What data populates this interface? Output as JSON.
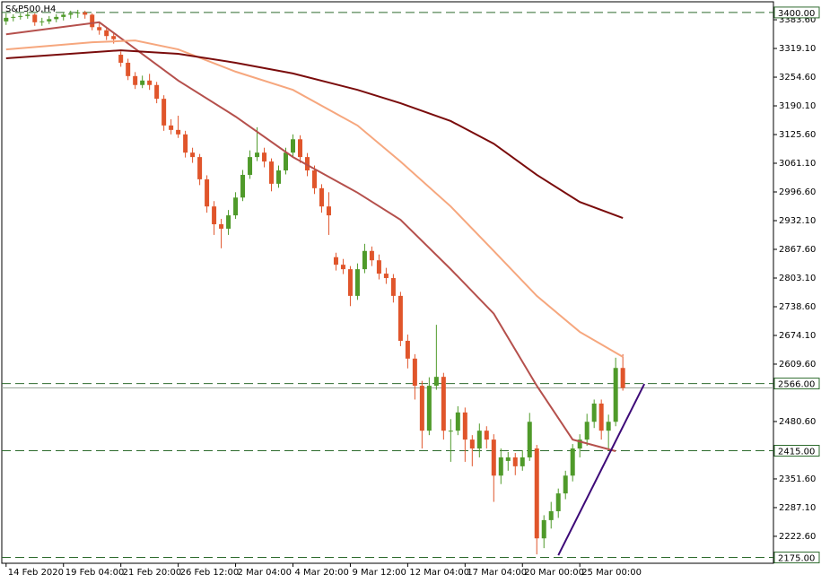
{
  "chart_data": {
    "type": "candlestick",
    "title": "S&P500,H4",
    "ylim": [
      2162,
      3424
    ],
    "xlim": [
      -0.6,
      107
    ],
    "yticks": [
      {
        "value": 3383.6,
        "label": "3383.60"
      },
      {
        "value": 3319.1,
        "label": "3319.10"
      },
      {
        "value": 3254.6,
        "label": "3254.60"
      },
      {
        "value": 3190.1,
        "label": "3190.10"
      },
      {
        "value": 3125.6,
        "label": "3125.60"
      },
      {
        "value": 3061.1,
        "label": "3061.10"
      },
      {
        "value": 2996.6,
        "label": "2996.60"
      },
      {
        "value": 2932.1,
        "label": "2932.10"
      },
      {
        "value": 2867.6,
        "label": "2867.60"
      },
      {
        "value": 2803.1,
        "label": "2803.10"
      },
      {
        "value": 2738.6,
        "label": "2738.60"
      },
      {
        "value": 2674.1,
        "label": "2674.10"
      },
      {
        "value": 2609.6,
        "label": "2609.60"
      },
      {
        "value": 2480.6,
        "label": "2480.60"
      },
      {
        "value": 2351.6,
        "label": "2351.60"
      },
      {
        "value": 2287.1,
        "label": "2287.10"
      },
      {
        "value": 2222.6,
        "label": "2222.60"
      }
    ],
    "xticks": [
      {
        "value": 0,
        "label": "14 Feb 2020"
      },
      {
        "value": 8,
        "label": "19 Feb 04:00"
      },
      {
        "value": 16,
        "label": "21 Feb 20:00"
      },
      {
        "value": 24,
        "label": "26 Feb 12:00"
      },
      {
        "value": 32,
        "label": "2 Mar 04:00"
      },
      {
        "value": 40,
        "label": "4 Mar 20:00"
      },
      {
        "value": 48,
        "label": "9 Mar 12:00"
      },
      {
        "value": 56,
        "label": "12 Mar 04:00"
      },
      {
        "value": 64,
        "label": "17 Mar 04:00"
      },
      {
        "value": 72,
        "label": "20 Mar 00:00"
      },
      {
        "value": 80,
        "label": "25 Mar 00:00"
      }
    ],
    "up_color": "#4f9a2a",
    "down_color": "#e0552b",
    "ohlc": [
      [
        3380,
        3398,
        3372,
        3388
      ],
      [
        3388,
        3396,
        3380,
        3390
      ],
      [
        3390,
        3398,
        3384,
        3392
      ],
      [
        3392,
        3402,
        3386,
        3395
      ],
      [
        3395,
        3398,
        3370,
        3378
      ],
      [
        3378,
        3388,
        3370,
        3380
      ],
      [
        3380,
        3392,
        3374,
        3385
      ],
      [
        3385,
        3396,
        3378,
        3390
      ],
      [
        3390,
        3400,
        3382,
        3395
      ],
      [
        3395,
        3404,
        3386,
        3398
      ],
      [
        3398,
        3406,
        3388,
        3400
      ],
      [
        3400,
        3404,
        3386,
        3395
      ],
      [
        3395,
        3398,
        3360,
        3367
      ],
      [
        3367,
        3376,
        3350,
        3360
      ],
      [
        3360,
        3366,
        3338,
        3347
      ],
      [
        3347,
        3356,
        3330,
        3340
      ],
      [
        3305,
        3312,
        3278,
        3287
      ],
      [
        3287,
        3296,
        3248,
        3257
      ],
      [
        3257,
        3266,
        3228,
        3237
      ],
      [
        3237,
        3258,
        3230,
        3247
      ],
      [
        3247,
        3262,
        3226,
        3237
      ],
      [
        3237,
        3244,
        3196,
        3206
      ],
      [
        3206,
        3214,
        3134,
        3146
      ],
      [
        3146,
        3160,
        3126,
        3136
      ],
      [
        3136,
        3168,
        3118,
        3126
      ],
      [
        3126,
        3134,
        3074,
        3085
      ],
      [
        3085,
        3096,
        3062,
        3075
      ],
      [
        3075,
        3082,
        3012,
        3025
      ],
      [
        3025,
        3034,
        2950,
        2964
      ],
      [
        2964,
        2976,
        2900,
        2924
      ],
      [
        2924,
        2936,
        2870,
        2914
      ],
      [
        2914,
        2956,
        2900,
        2944
      ],
      [
        2944,
        2996,
        2936,
        2984
      ],
      [
        2984,
        3046,
        2976,
        3035
      ],
      [
        3035,
        3090,
        3026,
        3075
      ],
      [
        3075,
        3142,
        3066,
        3085
      ],
      [
        3085,
        3096,
        3052,
        3065
      ],
      [
        3065,
        3072,
        2998,
        3015
      ],
      [
        3015,
        3056,
        3006,
        3045
      ],
      [
        3045,
        3096,
        3036,
        3085
      ],
      [
        3085,
        3126,
        3076,
        3115
      ],
      [
        3115,
        3124,
        3062,
        3075
      ],
      [
        3075,
        3084,
        3032,
        3045
      ],
      [
        3045,
        3056,
        2992,
        3005
      ],
      [
        3005,
        3014,
        2950,
        2964
      ],
      [
        2964,
        2996,
        2900,
        2944
      ],
      [
        2850,
        2860,
        2820,
        2833
      ],
      [
        2833,
        2846,
        2812,
        2823
      ],
      [
        2823,
        2830,
        2740,
        2763
      ],
      [
        2763,
        2836,
        2754,
        2823
      ],
      [
        2823,
        2880,
        2814,
        2864
      ],
      [
        2864,
        2874,
        2830,
        2843
      ],
      [
        2843,
        2856,
        2800,
        2813
      ],
      [
        2813,
        2826,
        2790,
        2803
      ],
      [
        2803,
        2812,
        2748,
        2763
      ],
      [
        2763,
        2772,
        2650,
        2662
      ],
      [
        2662,
        2676,
        2600,
        2622
      ],
      [
        2622,
        2632,
        2530,
        2561
      ],
      [
        2561,
        2572,
        2420,
        2460
      ],
      [
        2460,
        2580,
        2450,
        2561
      ],
      [
        2561,
        2698,
        2552,
        2581
      ],
      [
        2581,
        2590,
        2440,
        2460
      ],
      [
        2460,
        2486,
        2390,
        2460
      ],
      [
        2460,
        2515,
        2450,
        2501
      ],
      [
        2501,
        2512,
        2390,
        2440
      ],
      [
        2440,
        2450,
        2380,
        2420
      ],
      [
        2420,
        2476,
        2400,
        2460
      ],
      [
        2460,
        2470,
        2420,
        2440
      ],
      [
        2440,
        2452,
        2300,
        2359
      ],
      [
        2359,
        2420,
        2340,
        2400
      ],
      [
        2392,
        2412,
        2370,
        2400
      ],
      [
        2400,
        2410,
        2360,
        2380
      ],
      [
        2380,
        2416,
        2370,
        2400
      ],
      [
        2400,
        2500,
        2392,
        2480
      ],
      [
        2420,
        2428,
        2182,
        2218
      ],
      [
        2218,
        2270,
        2196,
        2259
      ],
      [
        2259,
        2300,
        2240,
        2279
      ],
      [
        2279,
        2330,
        2264,
        2319
      ],
      [
        2319,
        2370,
        2306,
        2359
      ],
      [
        2359,
        2430,
        2346,
        2420
      ],
      [
        2420,
        2452,
        2400,
        2440
      ],
      [
        2440,
        2498,
        2426,
        2480
      ],
      [
        2480,
        2530,
        2466,
        2521
      ],
      [
        2521,
        2530,
        2440,
        2460
      ],
      [
        2460,
        2496,
        2420,
        2480
      ],
      [
        2480,
        2624,
        2470,
        2601
      ],
      [
        2601,
        2632,
        2550,
        2556
      ]
    ],
    "series": [
      {
        "color": "#b5504c",
        "x": [
          0,
          13,
          24,
          32,
          40,
          49,
          55,
          62,
          68,
          74,
          79,
          85
        ],
        "values": [
          3351,
          3378,
          3247,
          3166,
          3075,
          2995,
          2934,
          2823,
          2723,
          2561,
          2440,
          2414
        ]
      },
      {
        "color": "#f6a77e",
        "x": [
          0,
          12,
          18,
          24,
          32,
          40,
          49,
          55,
          62,
          68,
          74,
          80,
          86
        ],
        "values": [
          3317,
          3333,
          3337,
          3317,
          3267,
          3226,
          3146,
          3065,
          2964,
          2864,
          2763,
          2682,
          2626
        ]
      },
      {
        "color": "#7a0c0c",
        "x": [
          0,
          16,
          24,
          32,
          40,
          49,
          55,
          62,
          68,
          74,
          80,
          86
        ],
        "values": [
          3297,
          3315,
          3307,
          3287,
          3263,
          3226,
          3196,
          3156,
          3105,
          3035,
          2974,
          2938
        ]
      }
    ],
    "levels": {
      "color": "#2e6b2e",
      "values": [
        3400,
        2566,
        2415,
        2175
      ],
      "value_labels": [
        "3400.00",
        "2566.00",
        "2415.00",
        "2175.00"
      ]
    },
    "trendline": {
      "color": "#3d0a78",
      "x": [
        77,
        89
      ],
      "values": [
        2180,
        2565
      ]
    }
  }
}
